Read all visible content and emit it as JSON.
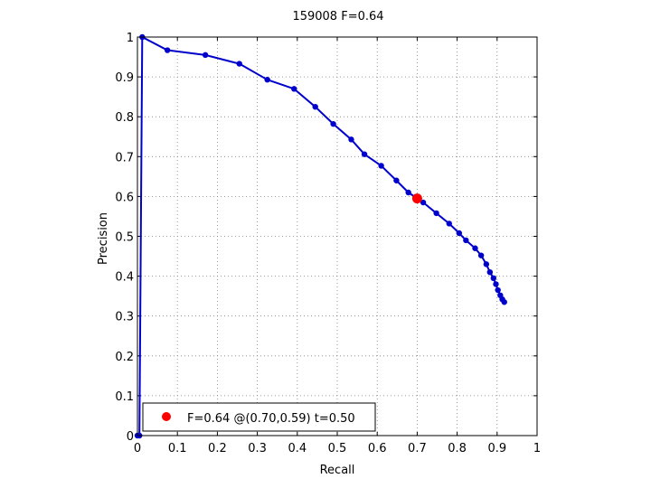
{
  "chart_data": {
    "type": "line",
    "title": "159008 F=0.64",
    "xlabel": "Recall",
    "ylabel": "Precision",
    "xlim": [
      0,
      1
    ],
    "ylim": [
      0,
      1
    ],
    "grid": true,
    "xticks": [
      "0",
      "0.1",
      "0.2",
      "0.3",
      "0.4",
      "0.5",
      "0.6",
      "0.7",
      "0.8",
      "0.9",
      "1"
    ],
    "yticks": [
      "0",
      "0.1",
      "0.2",
      "0.3",
      "0.4",
      "0.5",
      "0.6",
      "0.7",
      "0.8",
      "0.9",
      "1"
    ],
    "line_color": "#0000cc",
    "marker_color": "#0000cc",
    "highlight_color": "#ff0000",
    "series": [
      {
        "x": [
          0.0,
          0.005,
          0.012,
          0.075,
          0.17,
          0.255,
          0.325,
          0.392,
          0.445,
          0.49,
          0.535,
          0.568,
          0.61,
          0.648,
          0.678,
          0.715,
          0.748,
          0.78,
          0.805,
          0.822,
          0.845,
          0.86,
          0.873,
          0.882,
          0.891,
          0.897,
          0.902,
          0.908,
          0.913,
          0.918
        ],
        "y": [
          0.0,
          0.0,
          1.0,
          0.967,
          0.955,
          0.933,
          0.893,
          0.87,
          0.825,
          0.782,
          0.743,
          0.706,
          0.677,
          0.64,
          0.61,
          0.585,
          0.558,
          0.532,
          0.508,
          0.49,
          0.47,
          0.452,
          0.43,
          0.41,
          0.395,
          0.38,
          0.365,
          0.352,
          0.342,
          0.335
        ]
      }
    ],
    "highlight_point": {
      "x": 0.7,
      "y": 0.595
    },
    "legend": {
      "position": "bottom-left",
      "label": "F=0.64 @(0.70,0.59) t=0.50"
    }
  }
}
